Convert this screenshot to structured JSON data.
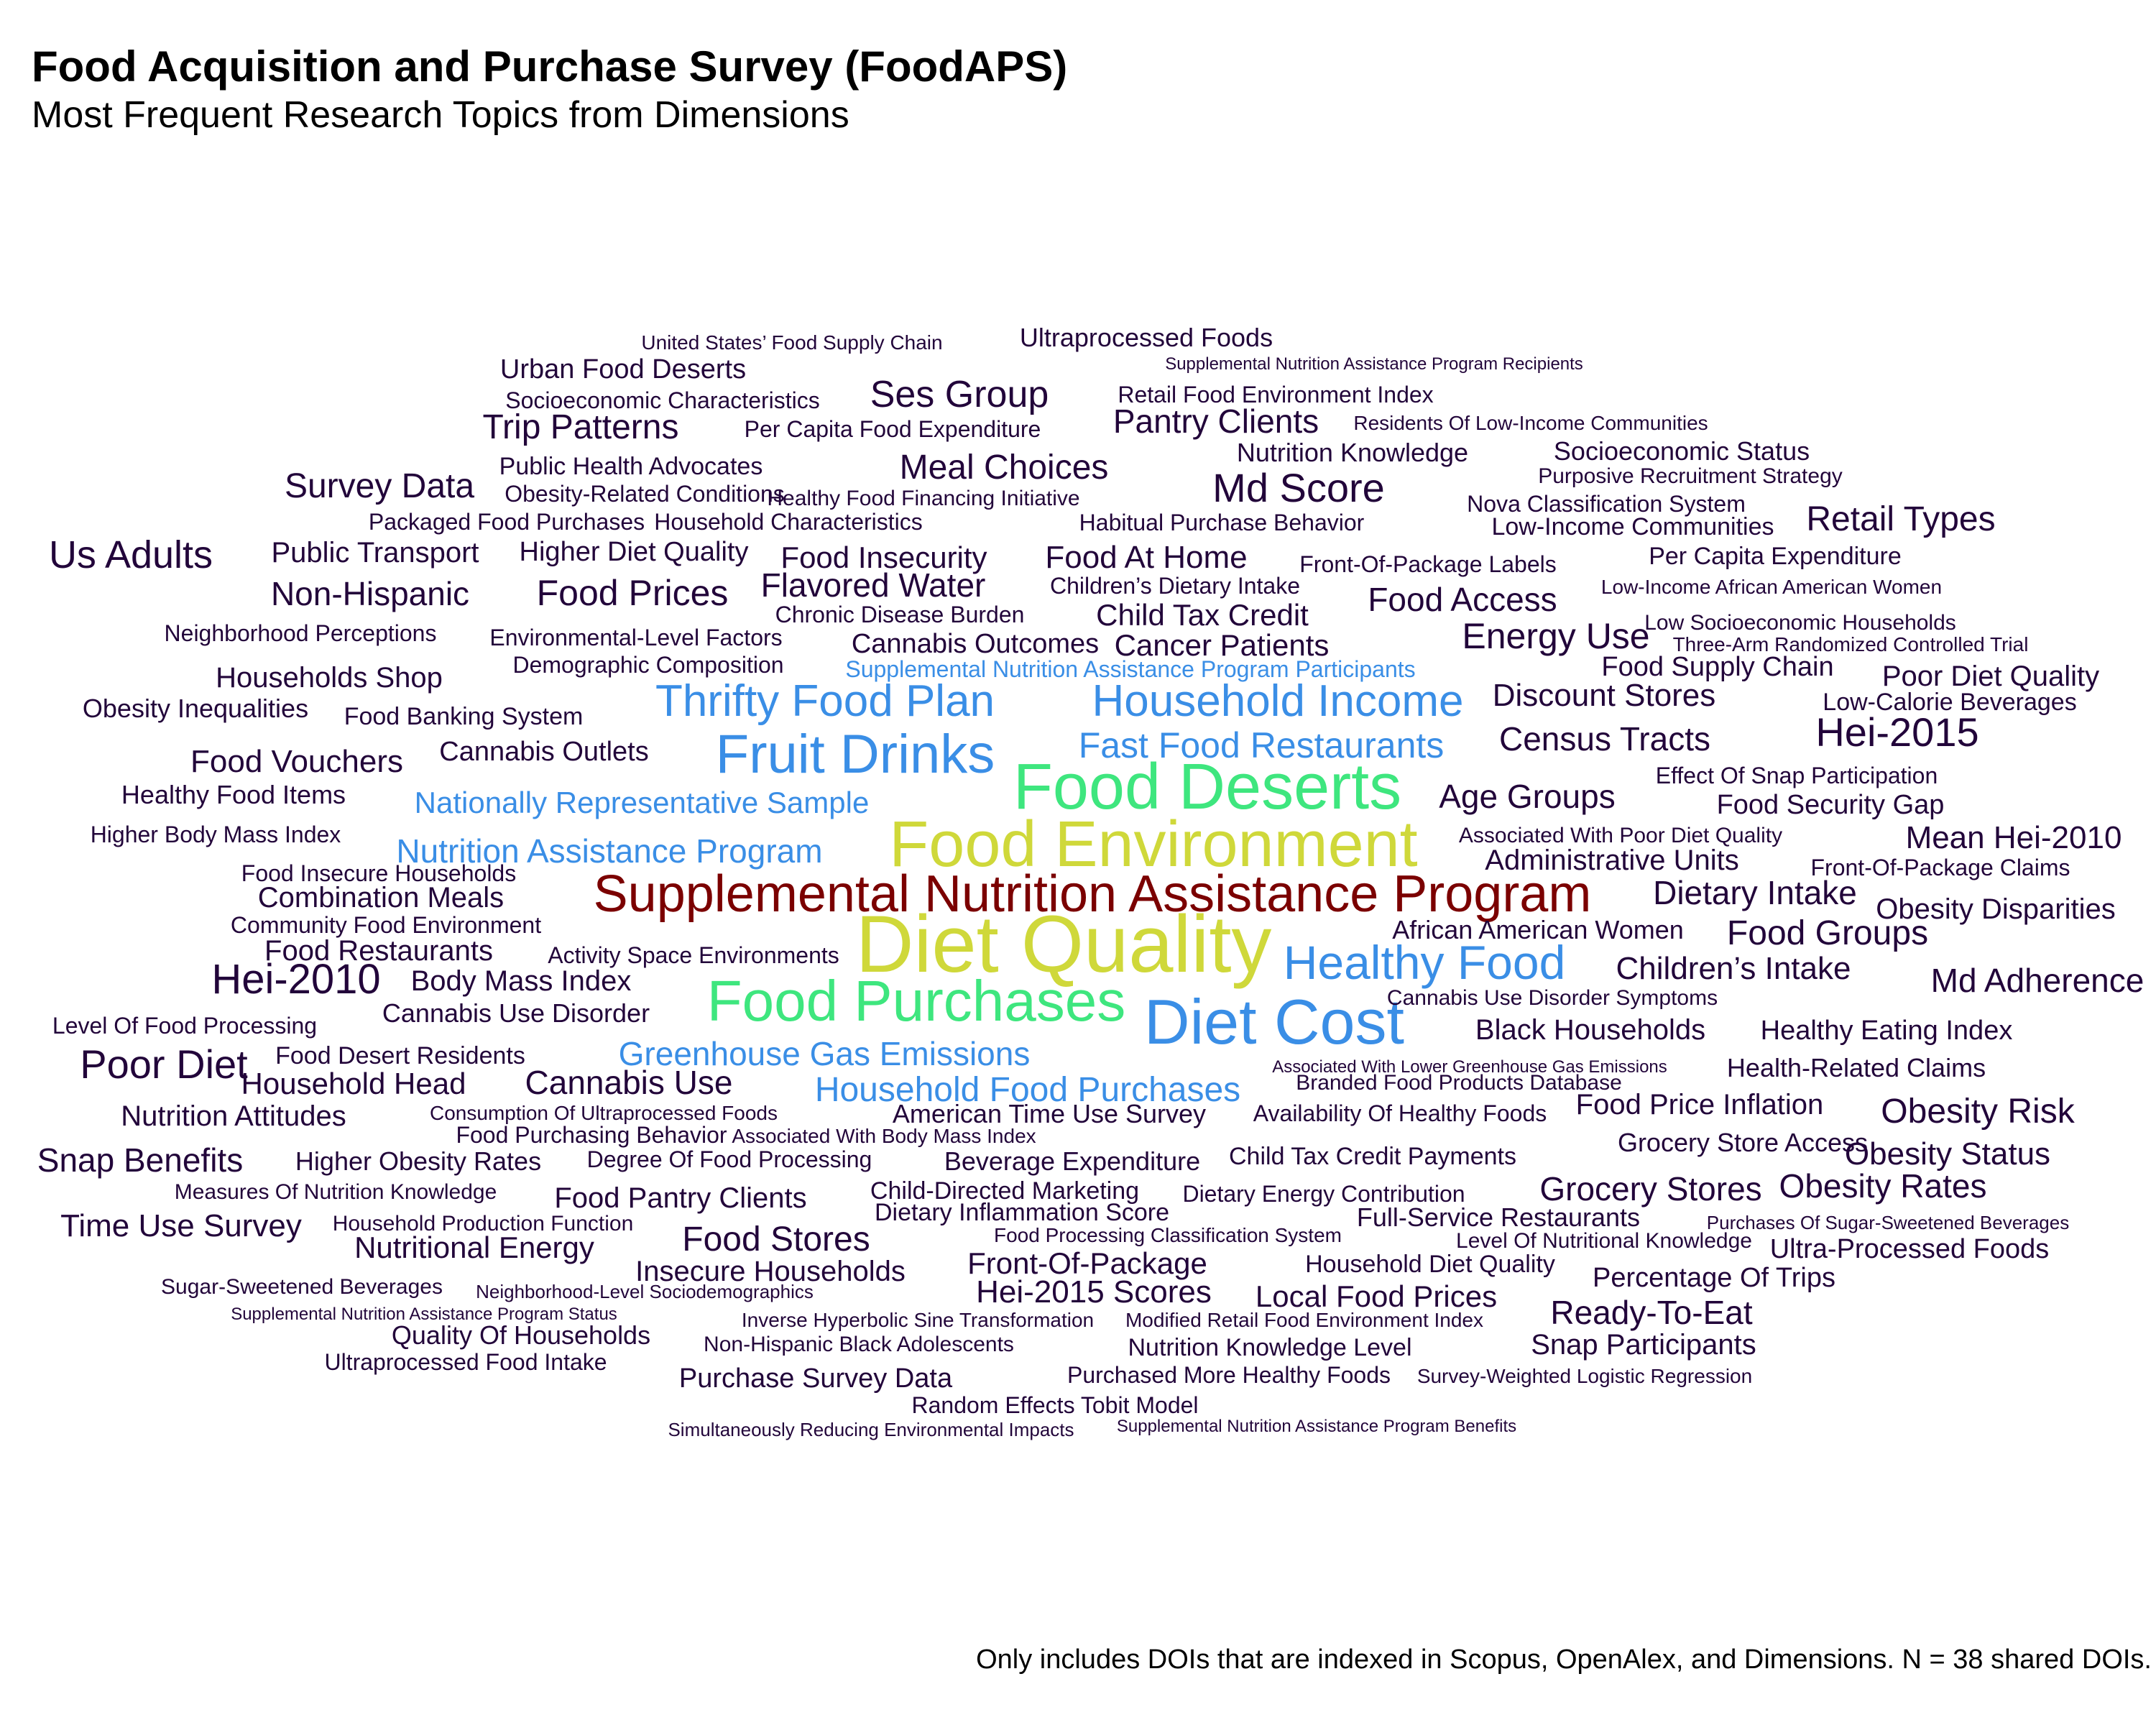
{
  "chart_data": {
    "type": "wordcloud",
    "title": "Food Acquisition and Purchase Survey (FoodAPS)",
    "subtitle": "Most Frequent Research Topics from Dimensions",
    "caption": "Only includes DOIs that are indexed in Scopus, OpenAlex, and Dimensions. N = 38 shared DOIs.",
    "colors": {
      "max": "#7b0000",
      "high": "#cfd83a",
      "mid": "#3ee67e",
      "low": "#3a8ee6",
      "base": "#22053a"
    },
    "words": [
      {
        "text": "Diet Quality",
        "tier": "high"
      },
      {
        "text": "Food Environment",
        "tier": "high"
      },
      {
        "text": "Supplemental Nutrition Assistance Program",
        "tier": "max"
      },
      {
        "text": "Food Deserts",
        "tier": "mid"
      },
      {
        "text": "Food Purchases",
        "tier": "mid"
      },
      {
        "text": "Diet Cost",
        "tier": "low"
      },
      {
        "text": "Fruit Drinks",
        "tier": "low"
      },
      {
        "text": "Healthy Food",
        "tier": "low"
      },
      {
        "text": "Thrifty Food Plan",
        "tier": "low"
      },
      {
        "text": "Household Income",
        "tier": "low"
      },
      {
        "text": "Fast Food Restaurants",
        "tier": "low"
      },
      {
        "text": "Nutrition Assistance Program",
        "tier": "low"
      },
      {
        "text": "Nationally Representative Sample",
        "tier": "low"
      },
      {
        "text": "Greenhouse Gas Emissions",
        "tier": "low"
      },
      {
        "text": "Household Food Purchases",
        "tier": "low"
      },
      {
        "text": "Supplemental Nutrition Assistance Program Participants",
        "tier": "low"
      },
      {
        "text": "Ultraprocessed Foods",
        "tier": "base"
      },
      {
        "text": "United States’ Food Supply Chain",
        "tier": "base"
      },
      {
        "text": "Supplemental Nutrition Assistance Program Recipients",
        "tier": "base"
      },
      {
        "text": "Urban Food Deserts",
        "tier": "base"
      },
      {
        "text": "Retail Food Environment Index",
        "tier": "base"
      },
      {
        "text": "Ses Group",
        "tier": "base"
      },
      {
        "text": "Socioeconomic Characteristics",
        "tier": "base"
      },
      {
        "text": "Trip Patterns",
        "tier": "base"
      },
      {
        "text": "Per Capita Food Expenditure",
        "tier": "base"
      },
      {
        "text": "Pantry Clients",
        "tier": "base"
      },
      {
        "text": "Residents Of Low-Income Communities",
        "tier": "base"
      },
      {
        "text": "Nutrition Knowledge",
        "tier": "base"
      },
      {
        "text": "Socioeconomic Status",
        "tier": "base"
      },
      {
        "text": "Public Health Advocates",
        "tier": "base"
      },
      {
        "text": "Meal Choices",
        "tier": "base"
      },
      {
        "text": "Purposive Recruitment Strategy",
        "tier": "base"
      },
      {
        "text": "Survey Data",
        "tier": "base"
      },
      {
        "text": "Obesity-Related Conditions",
        "tier": "base"
      },
      {
        "text": "Healthy Food Financing Initiative",
        "tier": "base"
      },
      {
        "text": "Md Score",
        "tier": "base"
      },
      {
        "text": "Nova Classification System",
        "tier": "base"
      },
      {
        "text": "Packaged Food Purchases",
        "tier": "base"
      },
      {
        "text": "Household Characteristics",
        "tier": "base"
      },
      {
        "text": "Habitual Purchase Behavior",
        "tier": "base"
      },
      {
        "text": "Low-Income Communities",
        "tier": "base"
      },
      {
        "text": "Retail Types",
        "tier": "base"
      },
      {
        "text": "Us Adults",
        "tier": "base"
      },
      {
        "text": "Public Transport",
        "tier": "base"
      },
      {
        "text": "Higher Diet Quality",
        "tier": "base"
      },
      {
        "text": "Food Insecurity",
        "tier": "base"
      },
      {
        "text": "Food At Home",
        "tier": "base"
      },
      {
        "text": "Front-Of-Package Labels",
        "tier": "base"
      },
      {
        "text": "Per Capita Expenditure",
        "tier": "base"
      },
      {
        "text": "Non-Hispanic",
        "tier": "base"
      },
      {
        "text": "Food Prices",
        "tier": "base"
      },
      {
        "text": "Flavored Water",
        "tier": "base"
      },
      {
        "text": "Children’s Dietary Intake",
        "tier": "base"
      },
      {
        "text": "Low-Income African American Women",
        "tier": "base"
      },
      {
        "text": "Chronic Disease Burden",
        "tier": "base"
      },
      {
        "text": "Child Tax Credit",
        "tier": "base"
      },
      {
        "text": "Food Access",
        "tier": "base"
      },
      {
        "text": "Neighborhood Perceptions",
        "tier": "base"
      },
      {
        "text": "Environmental-Level Factors",
        "tier": "base"
      },
      {
        "text": "Cannabis Outcomes",
        "tier": "base"
      },
      {
        "text": "Cancer Patients",
        "tier": "base"
      },
      {
        "text": "Energy Use",
        "tier": "base"
      },
      {
        "text": "Low Socioeconomic Households",
        "tier": "base"
      },
      {
        "text": "Three-Arm Randomized Controlled Trial",
        "tier": "base"
      },
      {
        "text": "Demographic Composition",
        "tier": "base"
      },
      {
        "text": "Food Supply Chain",
        "tier": "base"
      },
      {
        "text": "Households Shop",
        "tier": "base"
      },
      {
        "text": "Poor Diet Quality",
        "tier": "base"
      },
      {
        "text": "Discount Stores",
        "tier": "base"
      },
      {
        "text": "Obesity Inequalities",
        "tier": "base"
      },
      {
        "text": "Food Banking System",
        "tier": "base"
      },
      {
        "text": "Low-Calorie Beverages",
        "tier": "base"
      },
      {
        "text": "Hei-2015",
        "tier": "base"
      },
      {
        "text": "Census Tracts",
        "tier": "base"
      },
      {
        "text": "Cannabis Outlets",
        "tier": "base"
      },
      {
        "text": "Food Vouchers",
        "tier": "base"
      },
      {
        "text": "Effect Of Snap Participation",
        "tier": "base"
      },
      {
        "text": "Healthy Food Items",
        "tier": "base"
      },
      {
        "text": "Age Groups",
        "tier": "base"
      },
      {
        "text": "Food Security Gap",
        "tier": "base"
      },
      {
        "text": "Higher Body Mass Index",
        "tier": "base"
      },
      {
        "text": "Associated With Poor Diet Quality",
        "tier": "base"
      },
      {
        "text": "Mean Hei-2010",
        "tier": "base"
      },
      {
        "text": "Administrative Units",
        "tier": "base"
      },
      {
        "text": "Food Insecure Households",
        "tier": "base"
      },
      {
        "text": "Front-Of-Package Claims",
        "tier": "base"
      },
      {
        "text": "Combination Meals",
        "tier": "base"
      },
      {
        "text": "Dietary Intake",
        "tier": "base"
      },
      {
        "text": "Community Food Environment",
        "tier": "base"
      },
      {
        "text": "Obesity Disparities",
        "tier": "base"
      },
      {
        "text": "African American Women",
        "tier": "base"
      },
      {
        "text": "Food Groups",
        "tier": "base"
      },
      {
        "text": "Food Restaurants",
        "tier": "base"
      },
      {
        "text": "Activity Space Environments",
        "tier": "base"
      },
      {
        "text": "Children’s Intake",
        "tier": "base"
      },
      {
        "text": "Hei-2010",
        "tier": "base"
      },
      {
        "text": "Body Mass Index",
        "tier": "base"
      },
      {
        "text": "Md Adherence",
        "tier": "base"
      },
      {
        "text": "Cannabis Use Disorder Symptoms",
        "tier": "base"
      },
      {
        "text": "Cannabis Use Disorder",
        "tier": "base"
      },
      {
        "text": "Level Of Food Processing",
        "tier": "base"
      },
      {
        "text": "Black Households",
        "tier": "base"
      },
      {
        "text": "Healthy Eating Index",
        "tier": "base"
      },
      {
        "text": "Food Desert Residents",
        "tier": "base"
      },
      {
        "text": "Poor Diet",
        "tier": "base"
      },
      {
        "text": "Associated With Lower Greenhouse Gas Emissions",
        "tier": "base"
      },
      {
        "text": "Health-Related Claims",
        "tier": "base"
      },
      {
        "text": "Household Head",
        "tier": "base"
      },
      {
        "text": "Cannabis Use",
        "tier": "base"
      },
      {
        "text": "Branded Food Products Database",
        "tier": "base"
      },
      {
        "text": "American Time Use Survey",
        "tier": "base"
      },
      {
        "text": "Food Price Inflation",
        "tier": "base"
      },
      {
        "text": "Consumption Of Ultraprocessed Foods",
        "tier": "base"
      },
      {
        "text": "Availability Of Healthy Foods",
        "tier": "base"
      },
      {
        "text": "Obesity Risk",
        "tier": "base"
      },
      {
        "text": "Nutrition Attitudes",
        "tier": "base"
      },
      {
        "text": "Food Purchasing Behavior",
        "tier": "base"
      },
      {
        "text": "Associated With Body Mass Index",
        "tier": "base"
      },
      {
        "text": "Grocery Store Access",
        "tier": "base"
      },
      {
        "text": "Snap Benefits",
        "tier": "base"
      },
      {
        "text": "Higher Obesity Rates",
        "tier": "base"
      },
      {
        "text": "Degree Of Food Processing",
        "tier": "base"
      },
      {
        "text": "Beverage Expenditure",
        "tier": "base"
      },
      {
        "text": "Child Tax Credit Payments",
        "tier": "base"
      },
      {
        "text": "Obesity Status",
        "tier": "base"
      },
      {
        "text": "Measures Of Nutrition Knowledge",
        "tier": "base"
      },
      {
        "text": "Child-Directed Marketing",
        "tier": "base"
      },
      {
        "text": "Dietary Energy Contribution",
        "tier": "base"
      },
      {
        "text": "Grocery Stores",
        "tier": "base"
      },
      {
        "text": "Obesity Rates",
        "tier": "base"
      },
      {
        "text": "Food Pantry Clients",
        "tier": "base"
      },
      {
        "text": "Dietary Inflammation Score",
        "tier": "base"
      },
      {
        "text": "Full-Service Restaurants",
        "tier": "base"
      },
      {
        "text": "Time Use Survey",
        "tier": "base"
      },
      {
        "text": "Household Production Function",
        "tier": "base"
      },
      {
        "text": "Purchases Of Sugar-Sweetened Beverages",
        "tier": "base"
      },
      {
        "text": "Food Stores",
        "tier": "base"
      },
      {
        "text": "Food Processing Classification System",
        "tier": "base"
      },
      {
        "text": "Level Of Nutritional Knowledge",
        "tier": "base"
      },
      {
        "text": "Nutritional Energy",
        "tier": "base"
      },
      {
        "text": "Ultra-Processed Foods",
        "tier": "base"
      },
      {
        "text": "Front-Of-Package",
        "tier": "base"
      },
      {
        "text": "Household Diet Quality",
        "tier": "base"
      },
      {
        "text": "Insecure Households",
        "tier": "base"
      },
      {
        "text": "Percentage Of Trips",
        "tier": "base"
      },
      {
        "text": "Sugar-Sweetened Beverages",
        "tier": "base"
      },
      {
        "text": "Neighborhood-Level Sociodemographics",
        "tier": "base"
      },
      {
        "text": "Hei-2015 Scores",
        "tier": "base"
      },
      {
        "text": "Local Food Prices",
        "tier": "base"
      },
      {
        "text": "Supplemental Nutrition Assistance Program Status",
        "tier": "base"
      },
      {
        "text": "Ready-To-Eat",
        "tier": "base"
      },
      {
        "text": "Inverse Hyperbolic Sine Transformation",
        "tier": "base"
      },
      {
        "text": "Modified Retail Food Environment Index",
        "tier": "base"
      },
      {
        "text": "Quality Of Households",
        "tier": "base"
      },
      {
        "text": "Non-Hispanic Black Adolescents",
        "tier": "base"
      },
      {
        "text": "Nutrition Knowledge Level",
        "tier": "base"
      },
      {
        "text": "Snap Participants",
        "tier": "base"
      },
      {
        "text": "Ultraprocessed Food Intake",
        "tier": "base"
      },
      {
        "text": "Purchase Survey Data",
        "tier": "base"
      },
      {
        "text": "Purchased More Healthy Foods",
        "tier": "base"
      },
      {
        "text": "Survey-Weighted Logistic Regression",
        "tier": "base"
      },
      {
        "text": "Random Effects Tobit Model",
        "tier": "base"
      },
      {
        "text": "Simultaneously Reducing Environmental Impacts",
        "tier": "base"
      },
      {
        "text": "Supplemental Nutrition Assistance Program Benefits",
        "tier": "base"
      }
    ]
  }
}
